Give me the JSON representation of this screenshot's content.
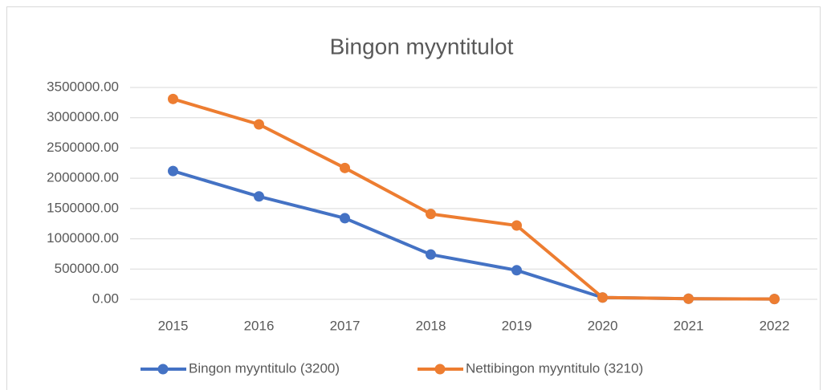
{
  "chart_data": {
    "type": "line",
    "title": "Bingon myyntitulot",
    "categories": [
      "2015",
      "2016",
      "2017",
      "2018",
      "2019",
      "2020",
      "2021",
      "2022"
    ],
    "series": [
      {
        "name": "Bingon myyntitulo (3200)",
        "color": "#4472c4",
        "values": [
          2120000,
          1700000,
          1340000,
          740000,
          480000,
          30000,
          10000,
          5000
        ]
      },
      {
        "name": "Nettibingon myyntitulo (3210)",
        "color": "#ed7d31",
        "values": [
          3310000,
          2890000,
          2170000,
          1410000,
          1220000,
          30000,
          10000,
          5000
        ]
      }
    ],
    "ylim": [
      0,
      3500000
    ],
    "yticks": [
      {
        "value": 0,
        "label": "0.00"
      },
      {
        "value": 500000,
        "label": "500000.00"
      },
      {
        "value": 1000000,
        "label": "1000000.00"
      },
      {
        "value": 1500000,
        "label": "1500000.00"
      },
      {
        "value": 2000000,
        "label": "2000000.00"
      },
      {
        "value": 2500000,
        "label": "2500000.00"
      },
      {
        "value": 3000000,
        "label": "3000000.00"
      },
      {
        "value": 3500000,
        "label": "3500000.00"
      }
    ],
    "grid": true,
    "legend": "bottom"
  }
}
